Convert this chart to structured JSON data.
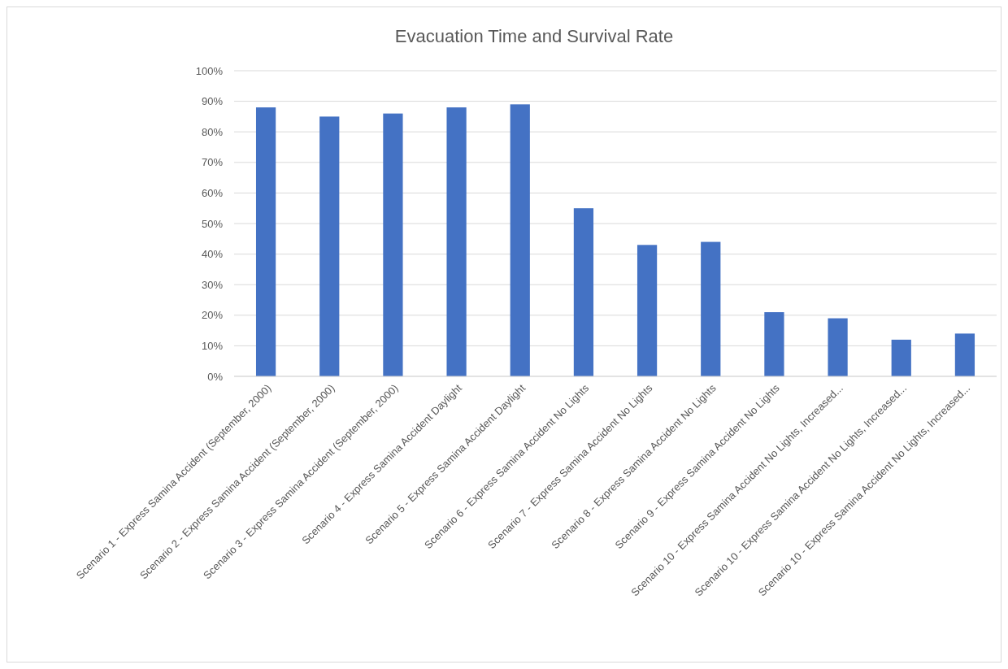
{
  "chart_data": {
    "type": "bar",
    "title": "Evacuation Time and Survival Rate",
    "categories": [
      "Scenario 1 - Express Samina Accident (September, 2000)",
      "Scenario 2 - Express Samina Accident (September, 2000)",
      "Scenario 3 - Express Samina Accident (September, 2000)",
      "Scenario 4 - Express Samina Accident Daylight",
      "Scenario 5 - Express Samina Accident Daylight",
      "Scenario 6 - Express Samina Accident No Lights",
      "Scenario 7 - Express Samina Accident No Lights",
      "Scenario 8 - Express Samina Accident No Lights",
      "Scenario 9 - Express Samina Accident No Lights",
      "Scenario 10 - Express Samina Accident No Lights, Increased...",
      "Scenario 10 - Express Samina Accident No Lights, Increased...",
      "Scenario 10 - Express Samina Accident No Lights, Increased..."
    ],
    "values": [
      88,
      85,
      86,
      88,
      89,
      55,
      43,
      44,
      21,
      19,
      12,
      14
    ],
    "color": "#4472c4",
    "ylim": [
      0,
      100
    ],
    "yticks": [
      {
        "value": 0,
        "label": "0%"
      },
      {
        "value": 10,
        "label": "10%"
      },
      {
        "value": 20,
        "label": "20%"
      },
      {
        "value": 30,
        "label": "30%"
      },
      {
        "value": 40,
        "label": "40%"
      },
      {
        "value": 50,
        "label": "50%"
      },
      {
        "value": 60,
        "label": "60%"
      },
      {
        "value": 70,
        "label": "70%"
      },
      {
        "value": 80,
        "label": "80%"
      },
      {
        "value": 90,
        "label": "90%"
      },
      {
        "value": 100,
        "label": "100%"
      }
    ],
    "grid": "y"
  }
}
